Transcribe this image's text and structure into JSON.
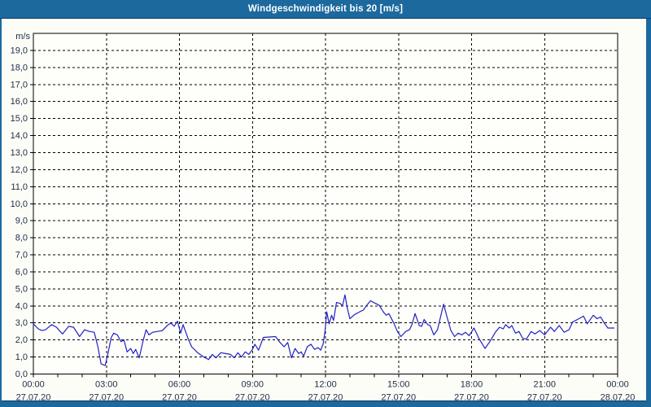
{
  "window": {
    "title": "Windgeschwindigkeit bis 20 [m/s]"
  },
  "colors": {
    "frame": "#1c699e",
    "frame_dark_line": "#0d3a5e",
    "content_bg": "#fdfdf7",
    "plot_bg": "#fefefa",
    "grid": "#000000",
    "axis": "#000000",
    "label": "#1c2b45",
    "series": "#2222c4"
  },
  "chart_data": {
    "type": "line",
    "title": "Windgeschwindigkeit bis 20 [m/s]",
    "ylabel": "m/s",
    "xlabel": "",
    "xlim": [
      0,
      24
    ],
    "ylim": [
      0,
      20
    ],
    "grid": "dashed",
    "legend": "none",
    "y_tick_step": 1,
    "y_tick_labels": [
      "0,0",
      "1,0",
      "2,0",
      "3,0",
      "4,0",
      "5,0",
      "6,0",
      "7,0",
      "8,0",
      "9,0",
      "10,0",
      "11,0",
      "12,0",
      "13,0",
      "14,0",
      "15,0",
      "16,0",
      "17,0",
      "18,0",
      "19,0"
    ],
    "x_minor_tick_hours": 1,
    "x_major_step_hours": 3,
    "x_labels": [
      {
        "h": 0,
        "time": "00:00",
        "date": "27.07.20"
      },
      {
        "h": 3,
        "time": "03:00",
        "date": "27.07.20"
      },
      {
        "h": 6,
        "time": "06:00",
        "date": "27.07.20"
      },
      {
        "h": 9,
        "time": "09:00",
        "date": "27.07.20"
      },
      {
        "h": 12,
        "time": "12:00",
        "date": "27.07.20"
      },
      {
        "h": 15,
        "time": "15:00",
        "date": "27.07.20"
      },
      {
        "h": 18,
        "time": "18:00",
        "date": "27.07.20"
      },
      {
        "h": 21,
        "time": "21:00",
        "date": "27.07.20"
      },
      {
        "h": 24,
        "time": "00:00",
        "date": "28.07.20"
      }
    ],
    "series": [
      {
        "name": "Windgeschwindigkeit",
        "color": "#2222c4",
        "points": [
          [
            0.0,
            2.95
          ],
          [
            0.2,
            2.65
          ],
          [
            0.35,
            2.55
          ],
          [
            0.5,
            2.6
          ],
          [
            0.75,
            2.9
          ],
          [
            0.95,
            2.75
          ],
          [
            1.1,
            2.5
          ],
          [
            1.2,
            2.35
          ],
          [
            1.45,
            2.8
          ],
          [
            1.65,
            2.75
          ],
          [
            1.9,
            2.2
          ],
          [
            2.1,
            2.6
          ],
          [
            2.3,
            2.5
          ],
          [
            2.5,
            2.45
          ],
          [
            2.65,
            1.6
          ],
          [
            2.78,
            0.6
          ],
          [
            2.95,
            0.5
          ],
          [
            3.05,
            1.1
          ],
          [
            3.2,
            2.15
          ],
          [
            3.3,
            2.4
          ],
          [
            3.45,
            2.3
          ],
          [
            3.6,
            1.9
          ],
          [
            3.72,
            2.0
          ],
          [
            3.85,
            1.3
          ],
          [
            4.0,
            1.5
          ],
          [
            4.1,
            1.2
          ],
          [
            4.2,
            1.45
          ],
          [
            4.35,
            0.95
          ],
          [
            4.5,
            1.9
          ],
          [
            4.63,
            2.6
          ],
          [
            4.75,
            2.3
          ],
          [
            4.9,
            2.45
          ],
          [
            5.1,
            2.5
          ],
          [
            5.3,
            2.55
          ],
          [
            5.5,
            2.85
          ],
          [
            5.65,
            3.0
          ],
          [
            5.78,
            2.8
          ],
          [
            5.92,
            3.1
          ],
          [
            6.05,
            2.4
          ],
          [
            6.15,
            2.9
          ],
          [
            6.35,
            2.1
          ],
          [
            6.5,
            1.6
          ],
          [
            6.75,
            1.25
          ],
          [
            7.0,
            1.0
          ],
          [
            7.2,
            0.85
          ],
          [
            7.35,
            1.15
          ],
          [
            7.5,
            0.95
          ],
          [
            7.7,
            1.25
          ],
          [
            7.9,
            1.2
          ],
          [
            8.1,
            1.15
          ],
          [
            8.25,
            0.95
          ],
          [
            8.4,
            1.25
          ],
          [
            8.55,
            1.0
          ],
          [
            8.7,
            1.3
          ],
          [
            8.85,
            1.15
          ],
          [
            9.0,
            1.45
          ],
          [
            9.1,
            1.75
          ],
          [
            9.25,
            1.4
          ],
          [
            9.45,
            2.15
          ],
          [
            9.95,
            2.2
          ],
          [
            10.1,
            1.9
          ],
          [
            10.3,
            1.6
          ],
          [
            10.45,
            1.85
          ],
          [
            10.6,
            0.95
          ],
          [
            10.75,
            1.5
          ],
          [
            10.9,
            1.2
          ],
          [
            11.0,
            1.3
          ],
          [
            11.1,
            1.05
          ],
          [
            11.25,
            1.6
          ],
          [
            11.4,
            1.75
          ],
          [
            11.55,
            1.45
          ],
          [
            11.7,
            1.55
          ],
          [
            11.8,
            1.4
          ],
          [
            11.9,
            1.75
          ],
          [
            11.98,
            2.5
          ],
          [
            12.05,
            3.65
          ],
          [
            12.15,
            2.95
          ],
          [
            12.25,
            3.45
          ],
          [
            12.33,
            3.15
          ],
          [
            12.45,
            4.2
          ],
          [
            12.6,
            4.15
          ],
          [
            12.7,
            4.0
          ],
          [
            12.8,
            4.65
          ],
          [
            12.9,
            3.85
          ],
          [
            13.0,
            3.25
          ],
          [
            13.2,
            3.5
          ],
          [
            13.4,
            3.65
          ],
          [
            13.55,
            3.75
          ],
          [
            13.7,
            4.05
          ],
          [
            13.85,
            4.3
          ],
          [
            14.05,
            4.15
          ],
          [
            14.2,
            4.05
          ],
          [
            14.4,
            3.6
          ],
          [
            14.5,
            3.45
          ],
          [
            14.6,
            3.55
          ],
          [
            14.8,
            3.0
          ],
          [
            14.95,
            2.5
          ],
          [
            15.1,
            2.2
          ],
          [
            15.3,
            2.5
          ],
          [
            15.45,
            2.6
          ],
          [
            15.55,
            2.9
          ],
          [
            15.68,
            3.55
          ],
          [
            15.85,
            2.85
          ],
          [
            15.95,
            2.8
          ],
          [
            16.05,
            3.2
          ],
          [
            16.2,
            2.9
          ],
          [
            16.3,
            2.85
          ],
          [
            16.45,
            2.3
          ],
          [
            16.6,
            2.6
          ],
          [
            16.85,
            4.1
          ],
          [
            17.0,
            3.3
          ],
          [
            17.15,
            2.55
          ],
          [
            17.3,
            2.2
          ],
          [
            17.45,
            2.4
          ],
          [
            17.6,
            2.3
          ],
          [
            17.75,
            2.45
          ],
          [
            17.9,
            2.25
          ],
          [
            18.1,
            2.7
          ],
          [
            18.3,
            2.1
          ],
          [
            18.55,
            1.5
          ],
          [
            18.75,
            1.9
          ],
          [
            19.0,
            2.5
          ],
          [
            19.15,
            2.75
          ],
          [
            19.3,
            2.65
          ],
          [
            19.4,
            2.9
          ],
          [
            19.55,
            2.7
          ],
          [
            19.65,
            2.85
          ],
          [
            19.8,
            2.4
          ],
          [
            19.95,
            2.5
          ],
          [
            20.1,
            2.1
          ],
          [
            20.25,
            2.05
          ],
          [
            20.45,
            2.5
          ],
          [
            20.6,
            2.35
          ],
          [
            20.8,
            2.55
          ],
          [
            21.0,
            2.3
          ],
          [
            21.25,
            2.75
          ],
          [
            21.4,
            2.5
          ],
          [
            21.6,
            2.85
          ],
          [
            21.8,
            2.45
          ],
          [
            22.0,
            2.6
          ],
          [
            22.15,
            3.05
          ],
          [
            22.35,
            3.2
          ],
          [
            22.6,
            3.4
          ],
          [
            22.75,
            2.95
          ],
          [
            23.0,
            3.45
          ],
          [
            23.15,
            3.25
          ],
          [
            23.3,
            3.35
          ],
          [
            23.45,
            3.0
          ],
          [
            23.6,
            2.7
          ],
          [
            23.85,
            2.7
          ]
        ]
      }
    ]
  }
}
